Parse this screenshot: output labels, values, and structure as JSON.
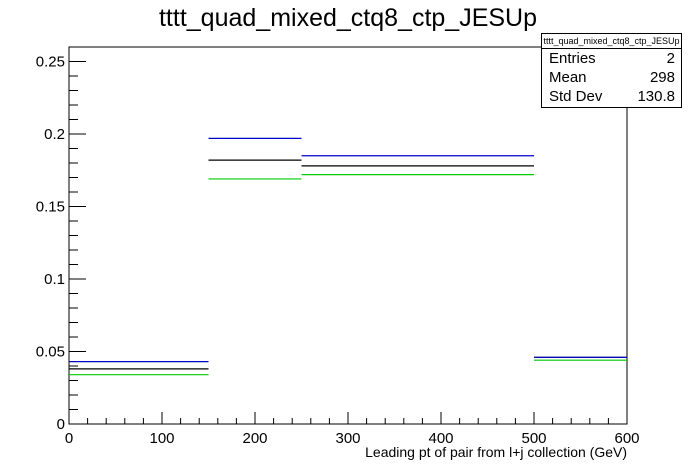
{
  "chart_data": {
    "type": "step-histogram",
    "title": "tttt_quad_mixed_ctq8_ctp_JESUp",
    "xlabel": "Leading pt of pair from l+j collection (GeV)",
    "ylabel": "",
    "xlim": [
      0,
      600
    ],
    "ylim": [
      0,
      0.26
    ],
    "xticks": [
      0,
      100,
      200,
      300,
      400,
      500,
      600
    ],
    "yticks": [
      0,
      0.05,
      0.1,
      0.15,
      0.2,
      0.25
    ],
    "ytick_labels": [
      "0",
      "0.05",
      "0.1",
      "0.15",
      "0.2",
      "0.25"
    ],
    "bin_edges": [
      0,
      150,
      250,
      500,
      600
    ],
    "series": [
      {
        "values": [
          0.038,
          0.182,
          0.178,
          0.046
        ],
        "color": "#000000"
      },
      {
        "values": [
          0.043,
          0.197,
          0.185,
          0.046
        ],
        "color": "#0000cc"
      },
      {
        "values": [
          0.034,
          0.169,
          0.172,
          0.044
        ],
        "color": "#00cc00"
      }
    ],
    "grid": false,
    "legend": "stats box top-right"
  },
  "stats": {
    "name": "tttt_quad_mixed_ctq8_ctp_JESUp",
    "entries_label": "Entries",
    "entries_value": "2",
    "mean_label": "Mean",
    "mean_value": "298",
    "stddev_label": "Std Dev",
    "stddev_value": "130.8"
  }
}
